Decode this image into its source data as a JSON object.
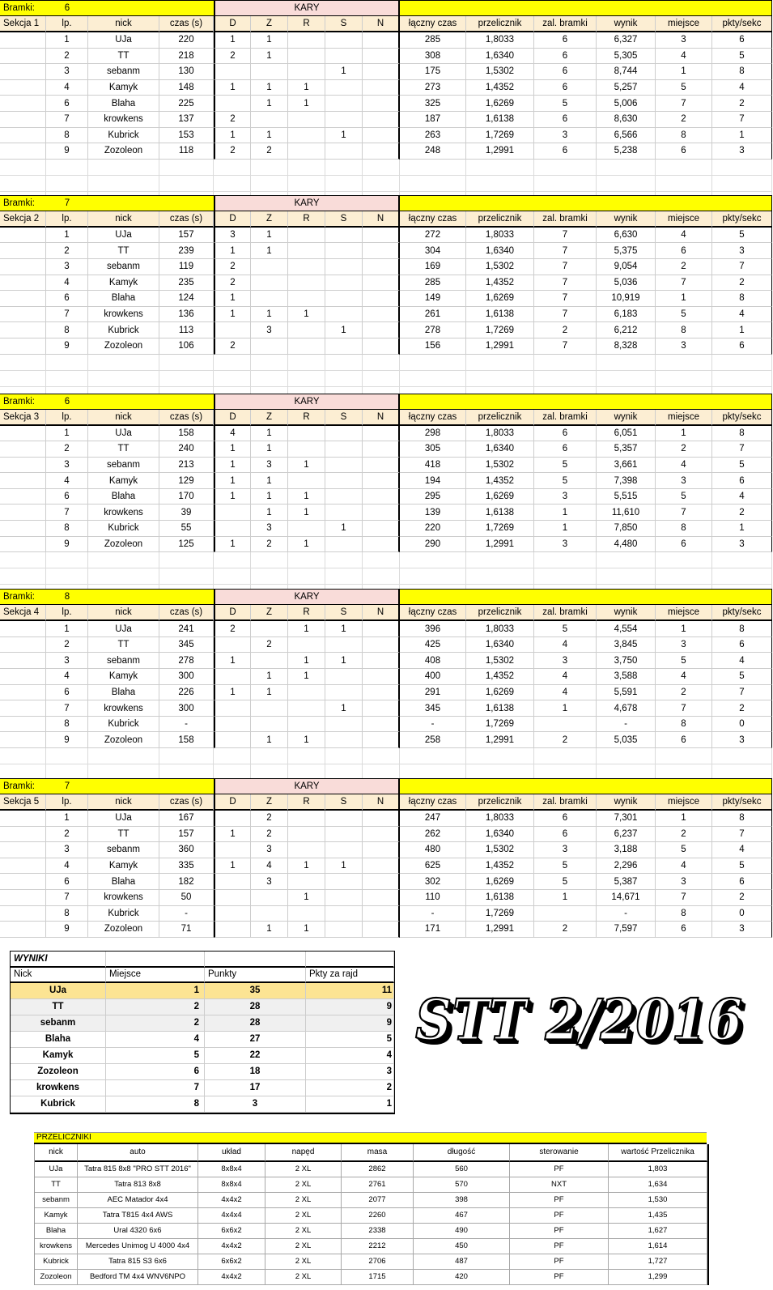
{
  "colors": {
    "band_yellow": "#FFFF00",
    "kary_pink": "#F9DCD9",
    "header_cream": "#FCEED3",
    "wyniki_leader_gold": "#FCE493",
    "wyniki_tie_gray": "#F0F0F0",
    "gridline": "#CDCDCD"
  },
  "labels": {
    "bramki": "Bramki:",
    "kary": "KARY"
  },
  "column_order": [
    "lp",
    "nick",
    "czas",
    "d",
    "z",
    "r",
    "s",
    "n",
    "laczny",
    "przelicznik",
    "zal",
    "wynik",
    "miejsce",
    "pkty"
  ],
  "column_headers": {
    "lp": "lp.",
    "nick": "nick",
    "czas": "czas (s)",
    "d": "D",
    "z": "Z",
    "r": "R",
    "s": "S",
    "n": "N",
    "laczny": "łączny czas",
    "przelicznik": "przelicznik",
    "zal": "zal. bramki",
    "wynik": "wynik",
    "miejsce": "miejsce",
    "pkty": "pkty/sekc"
  },
  "section_gaps": [
    44,
    48,
    45,
    37
  ],
  "sections": [
    {
      "label": "Sekcja 1",
      "bramki": "6",
      "rows": [
        [
          "1",
          "UJa",
          "220",
          "1",
          "1",
          "",
          "",
          "",
          "285",
          "1,8033",
          "6",
          "6,327",
          "3",
          "6"
        ],
        [
          "2",
          "TT",
          "218",
          "2",
          "1",
          "",
          "",
          "",
          "308",
          "1,6340",
          "6",
          "5,305",
          "4",
          "5"
        ],
        [
          "3",
          "sebanm",
          "130",
          "",
          "",
          "",
          "1",
          "",
          "175",
          "1,5302",
          "6",
          "8,744",
          "1",
          "8"
        ],
        [
          "4",
          "Kamyk",
          "148",
          "1",
          "1",
          "1",
          "",
          "",
          "273",
          "1,4352",
          "6",
          "5,257",
          "5",
          "4"
        ],
        [
          "6",
          "Blaha",
          "225",
          "",
          "1",
          "1",
          "",
          "",
          "325",
          "1,6269",
          "5",
          "5,006",
          "7",
          "2"
        ],
        [
          "7",
          "krowkens",
          "137",
          "2",
          "",
          "",
          "",
          "",
          "187",
          "1,6138",
          "6",
          "8,630",
          "2",
          "7"
        ],
        [
          "8",
          "Kubrick",
          "153",
          "1",
          "1",
          "",
          "1",
          "",
          "263",
          "1,7269",
          "3",
          "6,566",
          "8",
          "1"
        ],
        [
          "9",
          "Zozoleon",
          "118",
          "2",
          "2",
          "",
          "",
          "",
          "248",
          "1,2991",
          "6",
          "5,238",
          "6",
          "3"
        ]
      ]
    },
    {
      "label": "Sekcja 2",
      "bramki": "7",
      "rows": [
        [
          "1",
          "UJa",
          "157",
          "3",
          "1",
          "",
          "",
          "",
          "272",
          "1,8033",
          "7",
          "6,630",
          "4",
          "5"
        ],
        [
          "2",
          "TT",
          "239",
          "1",
          "1",
          "",
          "",
          "",
          "304",
          "1,6340",
          "7",
          "5,375",
          "6",
          "3"
        ],
        [
          "3",
          "sebanm",
          "119",
          "2",
          "",
          "",
          "",
          "",
          "169",
          "1,5302",
          "7",
          "9,054",
          "2",
          "7"
        ],
        [
          "4",
          "Kamyk",
          "235",
          "2",
          "",
          "",
          "",
          "",
          "285",
          "1,4352",
          "7",
          "5,036",
          "7",
          "2"
        ],
        [
          "6",
          "Blaha",
          "124",
          "1",
          "",
          "",
          "",
          "",
          "149",
          "1,6269",
          "7",
          "10,919",
          "1",
          "8"
        ],
        [
          "7",
          "krowkens",
          "136",
          "1",
          "1",
          "1",
          "",
          "",
          "261",
          "1,6138",
          "7",
          "6,183",
          "5",
          "4"
        ],
        [
          "8",
          "Kubrick",
          "113",
          "",
          "3",
          "",
          "1",
          "",
          "278",
          "1,7269",
          "2",
          "6,212",
          "8",
          "1"
        ],
        [
          "9",
          "Zozoleon",
          "106",
          "2",
          "",
          "",
          "",
          "",
          "156",
          "1,2991",
          "7",
          "8,328",
          "3",
          "6"
        ]
      ]
    },
    {
      "label": "Sekcja 3",
      "bramki": "6",
      "rows": [
        [
          "1",
          "UJa",
          "158",
          "4",
          "1",
          "",
          "",
          "",
          "298",
          "1,8033",
          "6",
          "6,051",
          "1",
          "8"
        ],
        [
          "2",
          "TT",
          "240",
          "1",
          "1",
          "",
          "",
          "",
          "305",
          "1,6340",
          "6",
          "5,357",
          "2",
          "7"
        ],
        [
          "3",
          "sebanm",
          "213",
          "1",
          "3",
          "1",
          "",
          "",
          "418",
          "1,5302",
          "5",
          "3,661",
          "4",
          "5"
        ],
        [
          "4",
          "Kamyk",
          "129",
          "1",
          "1",
          "",
          "",
          "",
          "194",
          "1,4352",
          "5",
          "7,398",
          "3",
          "6"
        ],
        [
          "6",
          "Blaha",
          "170",
          "1",
          "1",
          "1",
          "",
          "",
          "295",
          "1,6269",
          "3",
          "5,515",
          "5",
          "4"
        ],
        [
          "7",
          "krowkens",
          "39",
          "",
          "1",
          "1",
          "",
          "",
          "139",
          "1,6138",
          "1",
          "11,610",
          "7",
          "2"
        ],
        [
          "8",
          "Kubrick",
          "55",
          "",
          "3",
          "",
          "1",
          "",
          "220",
          "1,7269",
          "1",
          "7,850",
          "8",
          "1"
        ],
        [
          "9",
          "Zozoleon",
          "125",
          "1",
          "2",
          "1",
          "",
          "",
          "290",
          "1,2991",
          "3",
          "4,480",
          "6",
          "3"
        ]
      ]
    },
    {
      "label": "Sekcja 4",
      "bramki": "8",
      "rows": [
        [
          "1",
          "UJa",
          "241",
          "2",
          "",
          "1",
          "1",
          "",
          "396",
          "1,8033",
          "5",
          "4,554",
          "1",
          "8"
        ],
        [
          "2",
          "TT",
          "345",
          "",
          "2",
          "",
          "",
          "",
          "425",
          "1,6340",
          "4",
          "3,845",
          "3",
          "6"
        ],
        [
          "3",
          "sebanm",
          "278",
          "1",
          "",
          "1",
          "1",
          "",
          "408",
          "1,5302",
          "3",
          "3,750",
          "5",
          "4"
        ],
        [
          "4",
          "Kamyk",
          "300",
          "",
          "1",
          "1",
          "",
          "",
          "400",
          "1,4352",
          "4",
          "3,588",
          "4",
          "5"
        ],
        [
          "6",
          "Blaha",
          "226",
          "1",
          "1",
          "",
          "",
          "",
          "291",
          "1,6269",
          "4",
          "5,591",
          "2",
          "7"
        ],
        [
          "7",
          "krowkens",
          "300",
          "",
          "",
          "",
          "1",
          "",
          "345",
          "1,6138",
          "1",
          "4,678",
          "7",
          "2"
        ],
        [
          "8",
          "Kubrick",
          "-",
          "",
          "",
          "",
          "",
          "",
          "-",
          "1,7269",
          "",
          "-",
          "8",
          "0"
        ],
        [
          "9",
          "Zozoleon",
          "158",
          "",
          "1",
          "1",
          "",
          "",
          "258",
          "1,2991",
          "2",
          "5,035",
          "6",
          "3"
        ]
      ]
    },
    {
      "label": "Sekcja 5",
      "bramki": "7",
      "rows": [
        [
          "1",
          "UJa",
          "167",
          "",
          "2",
          "",
          "",
          "",
          "247",
          "1,8033",
          "6",
          "7,301",
          "1",
          "8"
        ],
        [
          "2",
          "TT",
          "157",
          "1",
          "2",
          "",
          "",
          "",
          "262",
          "1,6340",
          "6",
          "6,237",
          "2",
          "7"
        ],
        [
          "3",
          "sebanm",
          "360",
          "",
          "3",
          "",
          "",
          "",
          "480",
          "1,5302",
          "3",
          "3,188",
          "5",
          "4"
        ],
        [
          "4",
          "Kamyk",
          "335",
          "1",
          "4",
          "1",
          "1",
          "",
          "625",
          "1,4352",
          "5",
          "2,296",
          "4",
          "5"
        ],
        [
          "6",
          "Blaha",
          "182",
          "",
          "3",
          "",
          "",
          "",
          "302",
          "1,6269",
          "5",
          "5,387",
          "3",
          "6"
        ],
        [
          "7",
          "krowkens",
          "50",
          "",
          "",
          "1",
          "",
          "",
          "110",
          "1,6138",
          "1",
          "14,671",
          "7",
          "2"
        ],
        [
          "8",
          "Kubrick",
          "-",
          "",
          "",
          "",
          "",
          "",
          "-",
          "1,7269",
          "",
          "-",
          "8",
          "0"
        ],
        [
          "9",
          "Zozoleon",
          "71",
          "",
          "1",
          "1",
          "",
          "",
          "171",
          "1,2991",
          "2",
          "7,597",
          "6",
          "3"
        ]
      ]
    }
  ],
  "wyniki": {
    "title": "WYNIKI",
    "headers": [
      "Nick",
      "Miejsce",
      "Punkty",
      "Pkty za rajd"
    ],
    "rows": [
      {
        "nick": "UJa",
        "miejsce": "1",
        "punkty": "35",
        "rajd": "11",
        "highlight": "gold"
      },
      {
        "nick": "TT",
        "miejsce": "2",
        "punkty": "28",
        "rajd": "9",
        "highlight": "gray"
      },
      {
        "nick": "sebanm",
        "miejsce": "2",
        "punkty": "28",
        "rajd": "9",
        "highlight": "gray"
      },
      {
        "nick": "Blaha",
        "miejsce": "4",
        "punkty": "27",
        "rajd": "5",
        "highlight": ""
      },
      {
        "nick": "Kamyk",
        "miejsce": "5",
        "punkty": "22",
        "rajd": "4",
        "highlight": ""
      },
      {
        "nick": "Zozoleon",
        "miejsce": "6",
        "punkty": "18",
        "rajd": "3",
        "highlight": ""
      },
      {
        "nick": "krowkens",
        "miejsce": "7",
        "punkty": "17",
        "rajd": "2",
        "highlight": ""
      },
      {
        "nick": "Kubrick",
        "miejsce": "8",
        "punkty": "3",
        "rajd": "1",
        "highlight": ""
      }
    ]
  },
  "logo_text": "STT 2/2016",
  "przeliczniki": {
    "title": "PRZELICZNIKI",
    "headers": [
      "nick",
      "auto",
      "układ",
      "napęd",
      "masa",
      "długość",
      "sterowanie",
      "wartość Przelicznika"
    ],
    "rows": [
      [
        "UJa",
        "Tatra 815 8x8 \"PRO STT 2016\"",
        "8x8x4",
        "2 XL",
        "2862",
        "560",
        "PF",
        "1,803"
      ],
      [
        "TT",
        "Tatra 813 8x8",
        "8x8x4",
        "2 XL",
        "2761",
        "570",
        "NXT",
        "1,634"
      ],
      [
        "sebanm",
        "AEC Matador 4x4",
        "4x4x2",
        "2 XL",
        "2077",
        "398",
        "PF",
        "1,530"
      ],
      [
        "Kamyk",
        "Tatra T815 4x4 AWS",
        "4x4x4",
        "2 XL",
        "2260",
        "467",
        "PF",
        "1,435"
      ],
      [
        "Blaha",
        "Ural 4320 6x6",
        "6x6x2",
        "2 XL",
        "2338",
        "490",
        "PF",
        "1,627"
      ],
      [
        "krowkens",
        "Mercedes Unimog U 4000 4x4",
        "4x4x2",
        "2 XL",
        "2212",
        "450",
        "PF",
        "1,614"
      ],
      [
        "Kubrick",
        "Tatra 815 S3 6x6",
        "6x6x2",
        "2 XL",
        "2706",
        "487",
        "PF",
        "1,727"
      ],
      [
        "Zozoleon",
        "Bedford TM 4x4 WNV6NPO",
        "4x4x2",
        "2 XL",
        "1715",
        "420",
        "PF",
        "1,299"
      ]
    ]
  }
}
